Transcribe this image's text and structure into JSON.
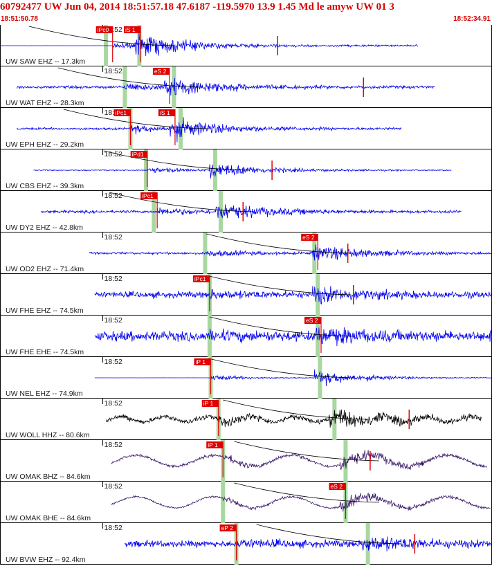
{
  "header": {
    "title": "60792477 UW Jun 04, 2014 18:51:57.18    47.6187 -119.5970 13.9 1.45 Md le amyw UW 01    3",
    "start_time": "18:51:50.78",
    "end_time": "18:52:34.91"
  },
  "colors": {
    "header_text": "#d40000",
    "trace_default": "#0000ee",
    "trace_black": "#000000",
    "trace_purple": "#3a1a6a",
    "pick_box": "#e00000",
    "pick_marker": "#e00000",
    "theory_band": "#a8d8a0",
    "moveout_curve": "#000000",
    "panel_border": "#000000"
  },
  "chart_data": {
    "type": "line",
    "title": "60792477 UW Jun 04, 2014 18:51:57.18    47.6187 -119.5970 13.9 1.45 Md le amyw UW 01    3",
    "x_unit": "seconds after 18:51:50.78",
    "xlim": [
      0,
      44.13
    ],
    "time_tick_label": "18:52",
    "time_tick_at": 9.22,
    "traces": [
      {
        "label": "UW SAW EHZ -- 17.3km",
        "distance_km": 17.3,
        "color": "trace_default",
        "data_start": 0,
        "data_end": 37.5,
        "amplitude": 0.85,
        "noise": 0.08,
        "p_pick": {
          "label": "iPc0",
          "t": 10.1
        },
        "s_pick": {
          "label": "iS 1",
          "t": 12.6
        },
        "bands": [
          9.5,
          12.5
        ],
        "extra_markers": [
          24.9
        ],
        "flat_before": 12.3
      },
      {
        "label": "UW WAT EHZ -- 28.3km",
        "distance_km": 28.3,
        "color": "trace_default",
        "data_start": 1.5,
        "data_end": 39.0,
        "amplitude": 0.75,
        "noise": 0.12,
        "p_pick": null,
        "s_pick": {
          "label": "eS 2",
          "t": 15.2
        },
        "bands": [
          11.2,
          15.6
        ],
        "extra_markers": [
          32.6
        ],
        "flat_before": null
      },
      {
        "label": "UW EPH EHZ -- 29.2km",
        "distance_km": 29.2,
        "color": "trace_default",
        "data_start": 1.5,
        "data_end": 36.0,
        "amplitude": 0.75,
        "noise": 0.1,
        "p_pick": {
          "label": "iPc1",
          "t": 11.7
        },
        "s_pick": {
          "label": "iS 1",
          "t": 15.7
        },
        "bands": [
          11.7,
          16.2
        ],
        "extra_markers": [],
        "flat_before": null
      },
      {
        "label": "UW CBS EHZ -- 39.3km",
        "distance_km": 39.3,
        "color": "trace_default",
        "data_start": 3.0,
        "data_end": 40.5,
        "amplitude": 0.6,
        "noise": 0.05,
        "p_pick": {
          "label": "iPd1",
          "t": 13.2
        },
        "s_pick": null,
        "bands": [
          13.1,
          19.3
        ],
        "extra_markers": [
          24.4
        ],
        "flat_before": null
      },
      {
        "label": "UW DY2 EHZ -- 42.8km",
        "distance_km": 42.8,
        "color": "trace_default",
        "data_start": 3.7,
        "data_end": 41.4,
        "amplitude": 0.7,
        "noise": 0.12,
        "p_pick": {
          "label": "iPc1",
          "t": 14.1
        },
        "s_pick": null,
        "bands": [
          13.8,
          19.8
        ],
        "extra_markers": [
          21.8
        ],
        "flat_before": null
      },
      {
        "label": "UW OD2 EHZ -- 71.4km",
        "distance_km": 71.4,
        "color": "trace_default",
        "data_start": 8.0,
        "data_end": 46.5,
        "amplitude": 0.65,
        "noise": 0.1,
        "p_pick": null,
        "s_pick": {
          "label": "eS 2",
          "t": 28.5
        },
        "bands": [
          18.4,
          28.2
        ],
        "extra_markers": [
          31.2
        ],
        "flat_before": null
      },
      {
        "label": "UW FHE EHZ -- 74.5km",
        "distance_km": 74.5,
        "color": "trace_default",
        "data_start": 8.5,
        "data_end": 47.0,
        "amplitude": 0.55,
        "noise": 0.28,
        "p_pick": {
          "label": "iPc1",
          "t": 18.8
        },
        "s_pick": null,
        "bands": [
          18.8,
          28.5
        ],
        "extra_markers": [
          31.7
        ],
        "flat_before": null
      },
      {
        "label": "UW FHE EHE -- 74.5km",
        "distance_km": 74.5,
        "color": "trace_default",
        "data_start": 8.5,
        "data_end": 47.0,
        "amplitude": 0.45,
        "noise": 0.45,
        "p_pick": null,
        "s_pick": {
          "label": "eS 2",
          "t": 28.8
        },
        "bands": [
          18.8,
          28.5
        ],
        "extra_markers": [],
        "flat_before": null
      },
      {
        "label": "UW NEL EHZ -- 74.9km",
        "distance_km": 74.9,
        "color": "trace_default",
        "data_start": 8.5,
        "data_end": 50.0,
        "amplitude": 0.6,
        "noise": 0.02,
        "p_pick": {
          "label": "iP 1",
          "t": 18.9
        },
        "s_pick": null,
        "bands": [
          18.9,
          28.7
        ],
        "extra_markers": [],
        "flat_before": 19.4
      },
      {
        "label": "UW WOLL HHZ -- 80.6km",
        "distance_km": 80.6,
        "color": "trace_black",
        "data_start": 9.5,
        "data_end": 43.2,
        "amplitude": 0.65,
        "noise": 0.2,
        "p_pick": {
          "label": "iP 1",
          "t": 19.6
        },
        "s_pick": null,
        "bands": [
          19.6,
          30.0
        ],
        "extra_markers": [
          36.7
        ],
        "flat_before": null
      },
      {
        "label": "UW OMAK BHZ -- 84.6km",
        "distance_km": 84.6,
        "color": "trace_purple",
        "data_start": 10.0,
        "data_end": 43.7,
        "amplitude": 0.6,
        "noise": 0.12,
        "p_pick": {
          "label": "iP 1",
          "t": 20.0
        },
        "s_pick": null,
        "bands": [
          20.0,
          31.0
        ],
        "extra_markers": [
          33.2
        ],
        "flat_before": null
      },
      {
        "label": "UW OMAK BHE -- 84.6km",
        "distance_km": 84.6,
        "color": "trace_purple",
        "data_start": 10.0,
        "data_end": 44.0,
        "amplitude": 0.5,
        "noise": 0.08,
        "p_pick": null,
        "s_pick": {
          "label": "eS 2",
          "t": 31.0
        },
        "bands": [
          20.0,
          31.0
        ],
        "extra_markers": [],
        "flat_before": null
      },
      {
        "label": "UW BVW EHZ -- 92.4km",
        "distance_km": 92.4,
        "color": "trace_default",
        "data_start": 11.2,
        "data_end": 45.0,
        "amplitude": 0.55,
        "noise": 0.3,
        "p_pick": {
          "label": "eP 2",
          "t": 21.2
        },
        "s_pick": null,
        "bands": [
          21.2,
          33.0
        ],
        "extra_markers": [
          37.2
        ],
        "flat_before": null
      }
    ]
  }
}
